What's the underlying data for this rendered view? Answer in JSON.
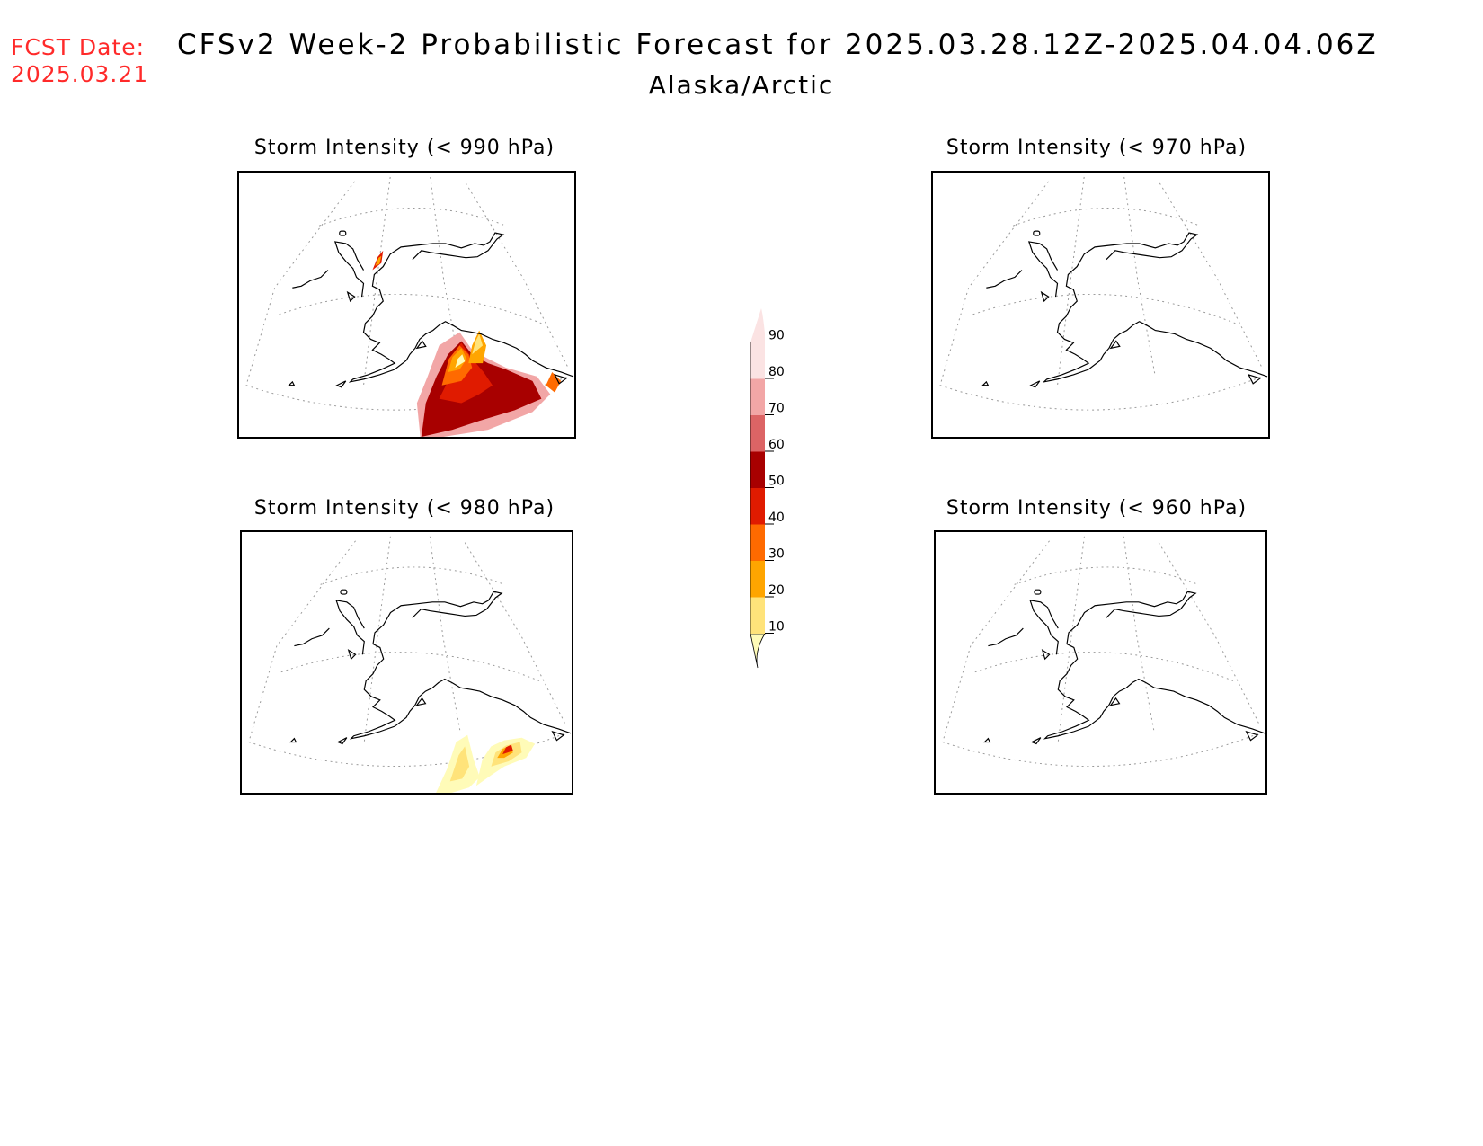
{
  "header": {
    "fcst_label": "FCST Date:",
    "fcst_date": "2025.03.21",
    "title": "CFSv2 Week-2 Probabilistic Forecast for 2025.03.28.12Z-2025.04.04.06Z",
    "subtitle": "Alaska/Arctic"
  },
  "panels": [
    {
      "title": "Storm Intensity (< 990 hPa)"
    },
    {
      "title": "Storm Intensity (< 970 hPa)"
    },
    {
      "title": "Storm Intensity (< 980 hPa)"
    },
    {
      "title": "Storm Intensity (< 960 hPa)"
    }
  ],
  "legend": {
    "levels": [
      "10",
      "20",
      "30",
      "40",
      "50",
      "60",
      "70",
      "80",
      "90"
    ],
    "colors": [
      "#fffbb8",
      "#ffe37a",
      "#ffa500",
      "#ff6a00",
      "#e01b00",
      "#a80000",
      "#dc6465",
      "#f2a6a6",
      "#fbe3e3"
    ]
  },
  "colors": {
    "fcst_date": "#ff2a2a"
  }
}
